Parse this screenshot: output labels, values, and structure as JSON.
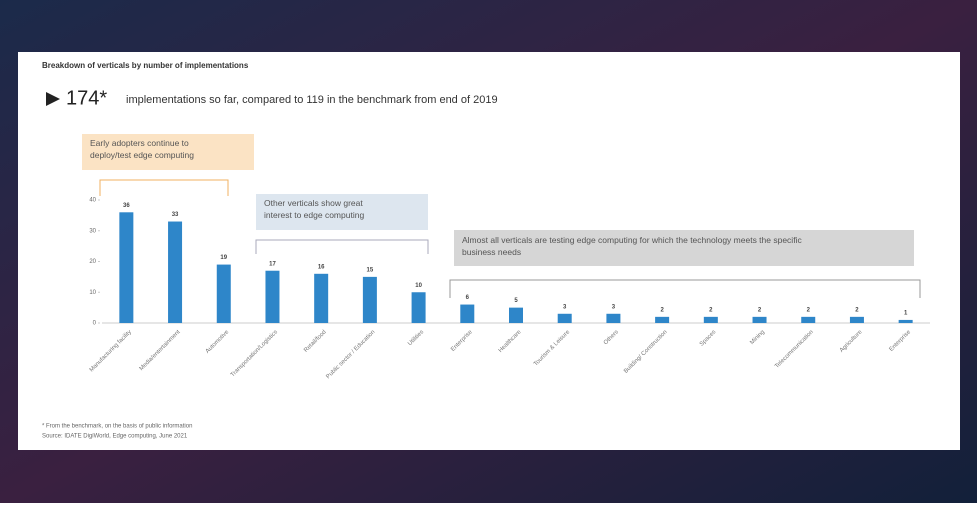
{
  "chart_data": {
    "type": "bar",
    "title": "Breakdown of verticals by number of implementations",
    "headline_number": "174*",
    "headline": "implementations so far, compared to 119 in the benchmark from end of 2019",
    "annotations": [
      "Early adopters continue to deploy/test edge computing",
      "Other verticals show great interest to edge computing",
      "Almost all verticals are testing edge computing for which the technology meets the specific business needs"
    ],
    "categories": [
      "Manufacturing facility",
      "Media/entertainment",
      "Automotive",
      "Transportation/Logistics",
      "Retail/food",
      "Public sector / Education",
      "Utilities",
      "Enterprise",
      "Healthcare",
      "Tourism & Leisure",
      "Others",
      "Building/ Construction",
      "Spaces",
      "Mining",
      "Telecommunication",
      "Agriculture",
      "Enterprise"
    ],
    "values": [
      36,
      33,
      19,
      17,
      16,
      15,
      10,
      6,
      5,
      3,
      3,
      2,
      2,
      2,
      2,
      2,
      1
    ],
    "color": "#2e86c9",
    "ylim": [
      0,
      40
    ],
    "yticks": [
      0,
      10,
      20,
      30,
      40
    ],
    "footnote": "* From the benchmark, on the basis of public information",
    "source": "Source: IDATE DigiWorld, Edge computing, June 2021"
  }
}
